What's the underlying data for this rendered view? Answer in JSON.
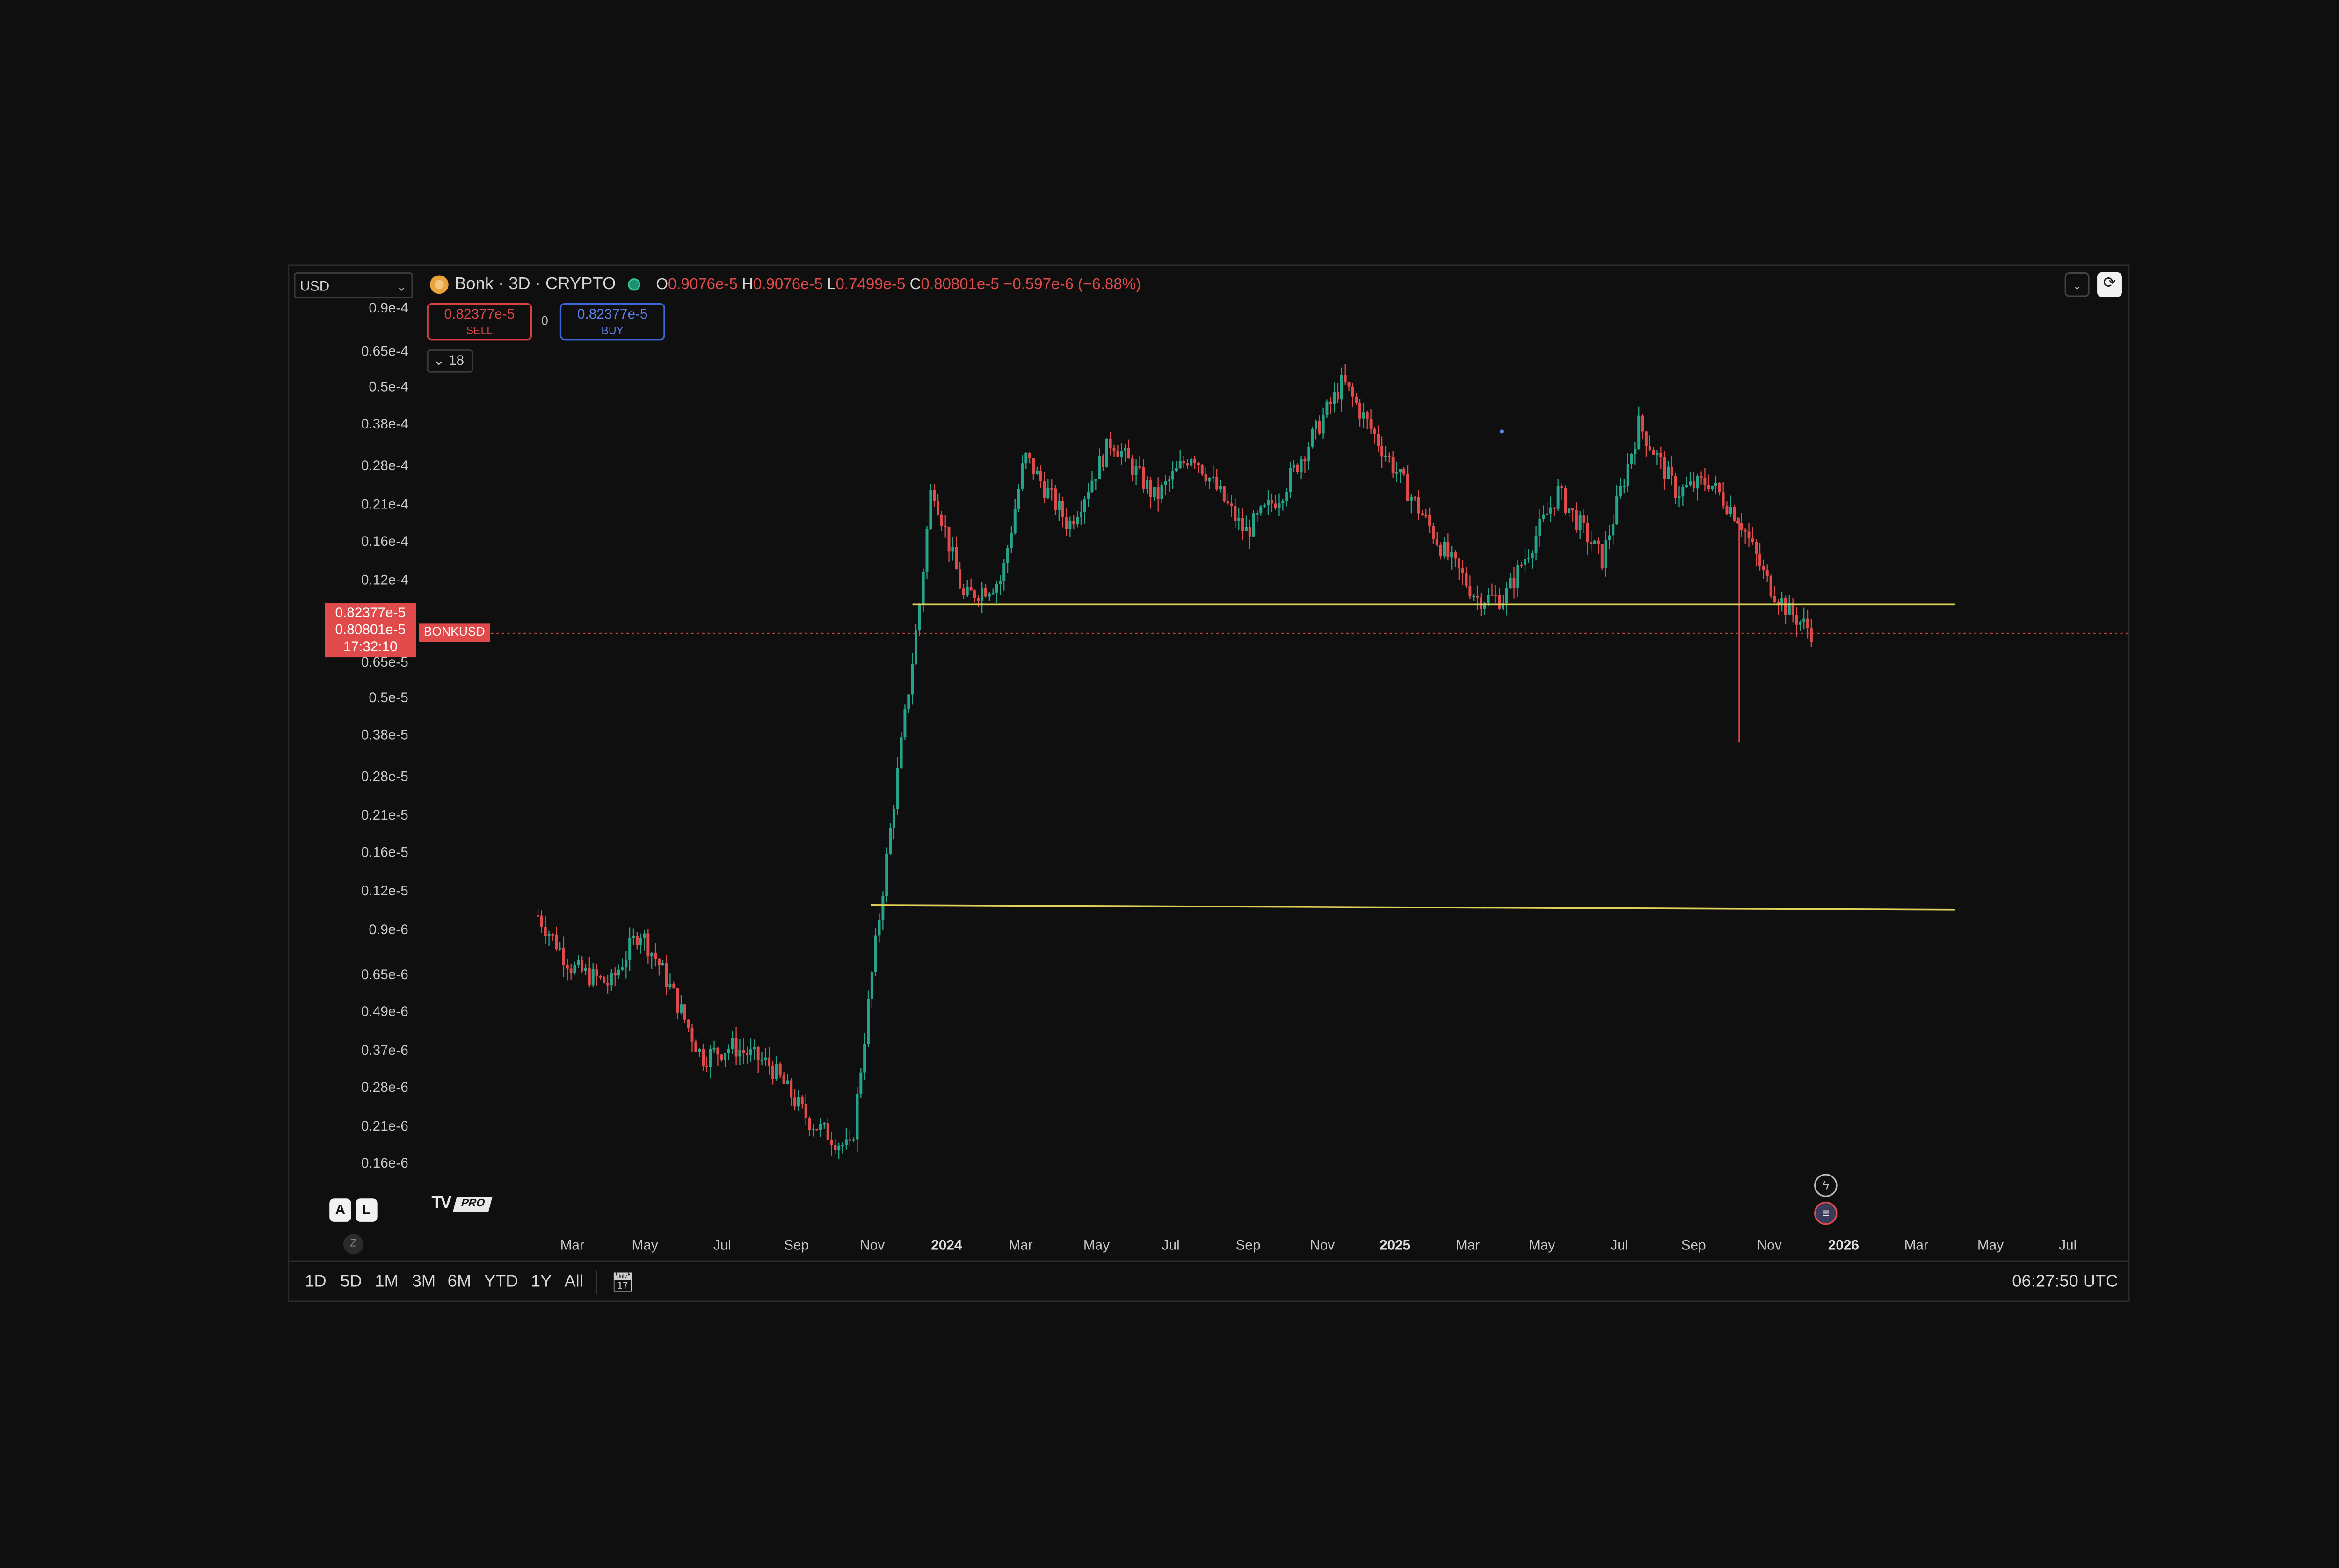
{
  "toolbar": {
    "currency": "USD",
    "download_icon": "arrow-down-icon",
    "fullscreen_icon": "fullscreen-icon"
  },
  "header": {
    "symbol": "Bonk · 3D · CRYPTO",
    "open_label": "O",
    "open": "0.9076e-5",
    "high_label": "H",
    "high": "0.9076e-5",
    "low_label": "L",
    "low": "0.7499e-5",
    "close_label": "C",
    "close": "0.80801e-5",
    "change": "−0.597e-6 (−6.88%)"
  },
  "trade": {
    "sell_price": "0.82377e-5",
    "sell_label": "SELL",
    "spread": "0",
    "buy_price": "0.82377e-5",
    "buy_label": "BUY",
    "collapse_label": "18"
  },
  "price_axis": {
    "ticks": [
      "0.9e-4",
      "0.65e-4",
      "0.5e-4",
      "0.38e-4",
      "0.28e-4",
      "0.21e-4",
      "0.16e-4",
      "0.12e-4",
      "0.65e-5",
      "0.5e-5",
      "0.38e-5",
      "0.28e-5",
      "0.21e-5",
      "0.16e-5",
      "0.12e-5",
      "0.9e-6",
      "0.65e-6",
      "0.49e-6",
      "0.37e-6",
      "0.28e-6",
      "0.21e-6",
      "0.16e-6"
    ],
    "current_ask": "0.82377e-5",
    "current_price": "0.80801e-5",
    "countdown": "17:32:10",
    "symbol_tag": "BONKUSD"
  },
  "time_axis": {
    "ticks": [
      {
        "label": "Mar",
        "bold": false
      },
      {
        "label": "May",
        "bold": false
      },
      {
        "label": "Jul",
        "bold": false
      },
      {
        "label": "Sep",
        "bold": false
      },
      {
        "label": "Nov",
        "bold": false
      },
      {
        "label": "2024",
        "bold": true
      },
      {
        "label": "Mar",
        "bold": false
      },
      {
        "label": "May",
        "bold": false
      },
      {
        "label": "Jul",
        "bold": false
      },
      {
        "label": "Sep",
        "bold": false
      },
      {
        "label": "Nov",
        "bold": false
      },
      {
        "label": "2025",
        "bold": true
      },
      {
        "label": "Mar",
        "bold": false
      },
      {
        "label": "May",
        "bold": false
      },
      {
        "label": "Jul",
        "bold": false
      },
      {
        "label": "Sep",
        "bold": false
      },
      {
        "label": "Nov",
        "bold": false
      },
      {
        "label": "2026",
        "bold": true
      },
      {
        "label": "Mar",
        "bold": false
      },
      {
        "label": "May",
        "bold": false
      },
      {
        "label": "Jul",
        "bold": false
      }
    ]
  },
  "bottom_bar": {
    "ranges": [
      "1D",
      "5D",
      "1M",
      "3M",
      "6M",
      "YTD",
      "1Y",
      "All"
    ],
    "calendar_icon": "calendar-icon",
    "clock": "06:27:50 UTC",
    "auto_scale": "A",
    "log_scale": "L",
    "reset": "Z"
  },
  "branding": {
    "logo": "TV",
    "pro": "PRO"
  },
  "events": [
    "lightning-icon",
    "flag-icon"
  ],
  "colors": {
    "background": "#0f0f0f",
    "up": "#26a48a",
    "down": "#e04a4a",
    "horizontal_line": "#e0d35a",
    "buy": "#5d83ee"
  },
  "chart_data": {
    "type": "candlestick",
    "scale": "log",
    "symbol": "BONKUSD",
    "interval": "3D",
    "ylim": [
      1.4e-07,
      0.0001
    ],
    "horizontal_lines": [
      1e-05,
      1.08e-06
    ],
    "last_price": 8.0801e-06,
    "close_series": [
      {
        "date": "2023-02",
        "price": 1e-06
      },
      {
        "date": "2023-03",
        "price": 6.8e-07
      },
      {
        "date": "2023-04",
        "price": 6e-07
      },
      {
        "date": "2023-04-25",
        "price": 9e-07
      },
      {
        "date": "2023-05-15",
        "price": 6.5e-07
      },
      {
        "date": "2023-06-15",
        "price": 3.5e-07
      },
      {
        "date": "2023-07-10",
        "price": 3.8e-07
      },
      {
        "date": "2023-08-10",
        "price": 3.3e-07
      },
      {
        "date": "2023-09-10",
        "price": 2.2e-07
      },
      {
        "date": "2023-10-15",
        "price": 1.75e-07
      },
      {
        "date": "2023-11-01",
        "price": 6.5e-07
      },
      {
        "date": "2023-11-20",
        "price": 2.5e-06
      },
      {
        "date": "2023-12-10",
        "price": 1e-05
      },
      {
        "date": "2023-12-20",
        "price": 2.5e-05
      },
      {
        "date": "2024-01-15",
        "price": 1.05e-05
      },
      {
        "date": "2024-02-15",
        "price": 1.2e-05
      },
      {
        "date": "2024-03-05",
        "price": 3e-05
      },
      {
        "date": "2024-04-10",
        "price": 1.8e-05
      },
      {
        "date": "2024-05-15",
        "price": 3.4e-05
      },
      {
        "date": "2024-06-20",
        "price": 2.2e-05
      },
      {
        "date": "2024-07-20",
        "price": 3.1e-05
      },
      {
        "date": "2024-09-01",
        "price": 1.7e-05
      },
      {
        "date": "2024-10-01",
        "price": 2.3e-05
      },
      {
        "date": "2024-11-20",
        "price": 5.2e-05
      },
      {
        "date": "2024-12-20",
        "price": 3.3e-05
      },
      {
        "date": "2025-02-10",
        "price": 1.5e-05
      },
      {
        "date": "2025-03-10",
        "price": 1.05e-05
      },
      {
        "date": "2025-04-01",
        "price": 1.05e-05
      },
      {
        "date": "2025-05-15",
        "price": 2.3e-05
      },
      {
        "date": "2025-06-20",
        "price": 1.4e-05
      },
      {
        "date": "2025-07-20",
        "price": 3.8e-05
      },
      {
        "date": "2025-08-20",
        "price": 2.3e-05
      },
      {
        "date": "2025-09-15",
        "price": 2.5e-05
      },
      {
        "date": "2025-10-10",
        "price": 1.9e-05
      },
      {
        "date": "2025-11-01",
        "price": 1.2e-05
      },
      {
        "date": "2025-11-20",
        "price": 9.5e-06
      },
      {
        "date": "2025-12-10",
        "price": 8.08e-06
      }
    ],
    "wicks": [
      {
        "date": "2025-10-10",
        "low": 3.6e-06
      }
    ]
  }
}
